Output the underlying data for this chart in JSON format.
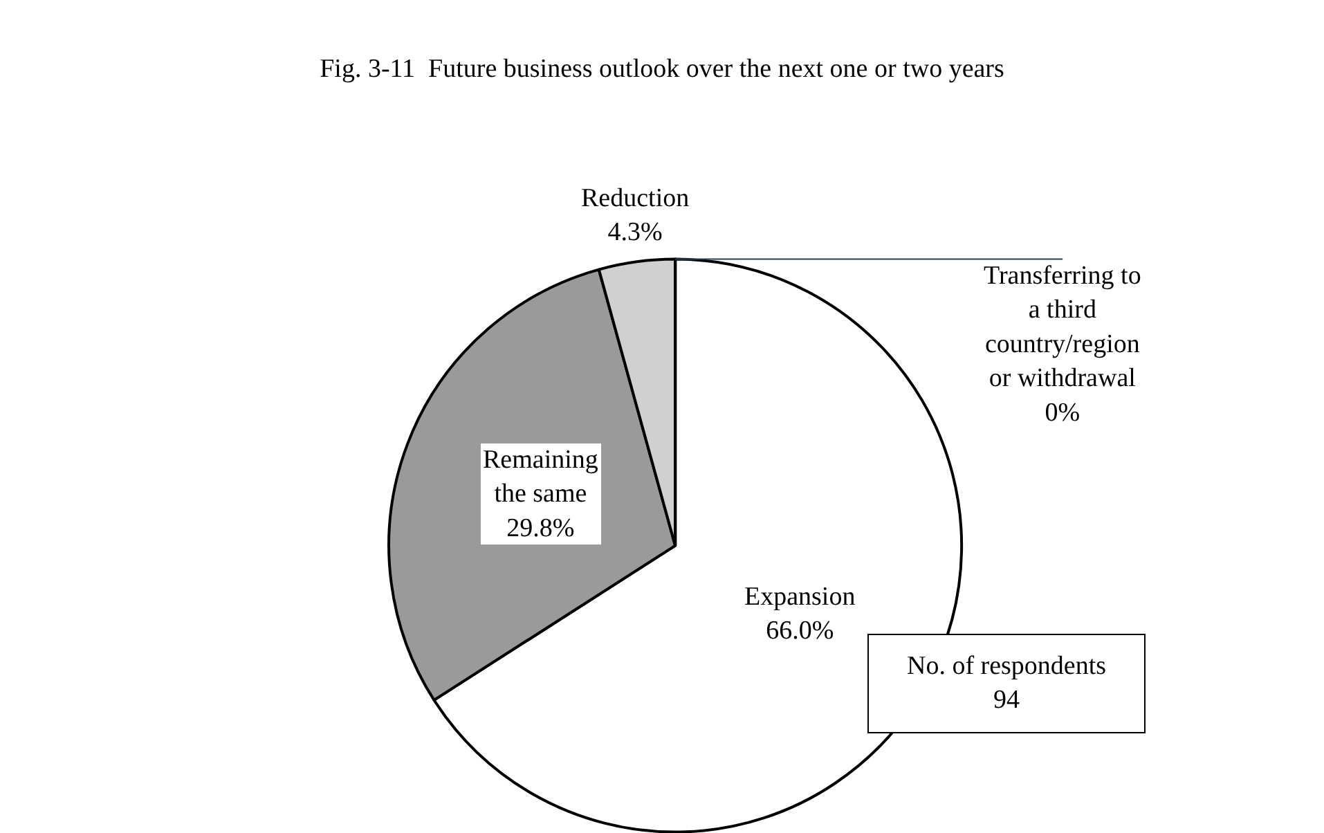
{
  "chart_data": {
    "type": "pie",
    "title": "Fig. 3-11  Future business outlook over the next one or two years",
    "categories": [
      "Expansion",
      "Remaining the same",
      "Reduction",
      "Transferring to a third country/region or withdrawal"
    ],
    "values": [
      66.0,
      29.8,
      4.3,
      0
    ],
    "value_labels": [
      "66.0%",
      "29.8%",
      "4.3%",
      "0%"
    ],
    "colors": [
      "#ffffff",
      "#9a9a9a",
      "#d0d0d0",
      "#ffffff"
    ],
    "legend": false,
    "annotations": [
      "No. of respondents\n94"
    ]
  }
}
